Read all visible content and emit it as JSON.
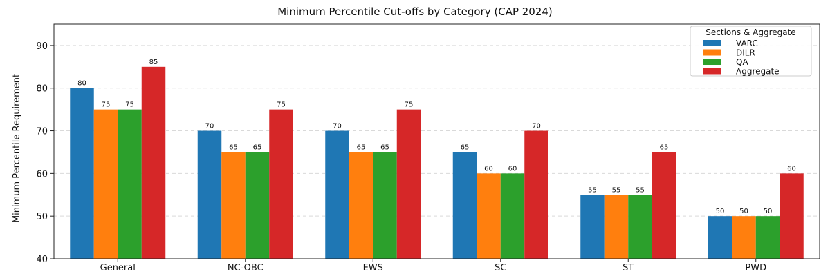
{
  "chart_data": {
    "type": "bar",
    "title": "Minimum Percentile Cut-offs by Category (CAP 2024)",
    "xlabel": "",
    "ylabel": "Minimum Percentile Requirement",
    "ylim": [
      40,
      95
    ],
    "yticks": [
      40,
      50,
      60,
      70,
      80,
      90
    ],
    "grid": true,
    "legend_title": "Sections & Aggregate",
    "legend_position": "top-right",
    "categories": [
      "General",
      "NC-OBC",
      "EWS",
      "SC",
      "ST",
      "PWD"
    ],
    "series": [
      {
        "name": "VARC",
        "color": "#1f77b4",
        "values": [
          80,
          70,
          70,
          65,
          55,
          50
        ]
      },
      {
        "name": "DILR",
        "color": "#ff7f0e",
        "values": [
          75,
          65,
          65,
          60,
          55,
          50
        ]
      },
      {
        "name": "QA",
        "color": "#2ca02c",
        "values": [
          75,
          65,
          65,
          60,
          55,
          50
        ]
      },
      {
        "name": "Aggregate",
        "color": "#d62728",
        "values": [
          85,
          75,
          75,
          70,
          65,
          60
        ]
      }
    ]
  }
}
